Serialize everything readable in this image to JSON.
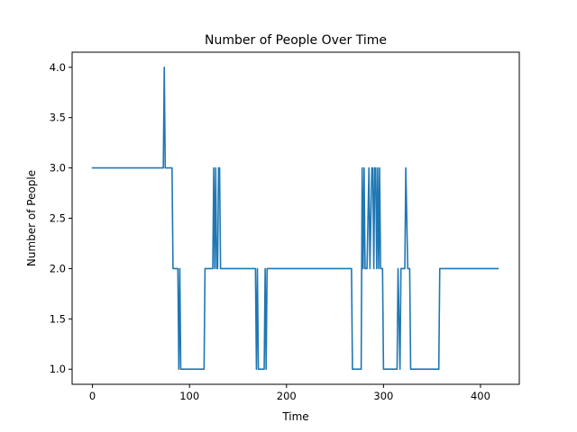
{
  "chart_data": {
    "type": "line",
    "title": "Number of People Over Time",
    "xlabel": "Time",
    "ylabel": "Number of People",
    "xlim": [
      -21,
      440
    ],
    "ylim": [
      0.85,
      4.15
    ],
    "xticks": [
      0,
      100,
      200,
      300,
      400
    ],
    "xtick_labels": [
      "0",
      "100",
      "200",
      "300",
      "400"
    ],
    "yticks": [
      1.0,
      1.5,
      2.0,
      2.5,
      3.0,
      3.5,
      4.0
    ],
    "ytick_labels": [
      "1.0",
      "1.5",
      "2.0",
      "2.5",
      "3.0",
      "3.5",
      "4.0"
    ],
    "grid": false,
    "legend": "none",
    "series": [
      {
        "color": "#1f77b4",
        "x": [
          0,
          73,
          74,
          75,
          77,
          78,
          80,
          81,
          82,
          83,
          88,
          89,
          90,
          91,
          92,
          115,
          116,
          124,
          125,
          126,
          127,
          128,
          129,
          130,
          131,
          132,
          168,
          169,
          170,
          171,
          172,
          173,
          177,
          178,
          179,
          180,
          181,
          267,
          268,
          277,
          278,
          279,
          280,
          281,
          282,
          283,
          285,
          286,
          288,
          289,
          290,
          291,
          292,
          293,
          294,
          295,
          296,
          297,
          298,
          299,
          300,
          301,
          313,
          314,
          315,
          317,
          318,
          320,
          322,
          323,
          325,
          327,
          328,
          357,
          358,
          418
        ],
        "values": [
          3,
          3,
          4,
          3,
          3,
          3,
          3,
          3,
          3,
          2,
          2,
          1,
          2,
          1,
          1,
          1,
          2,
          2,
          3,
          2,
          3,
          2,
          2,
          3,
          3,
          2,
          2,
          1,
          2,
          1,
          1,
          1,
          1,
          2,
          1,
          2,
          2,
          2,
          1,
          1,
          3,
          2,
          3,
          2,
          2,
          2,
          3,
          2,
          3,
          3,
          2,
          3,
          3,
          2,
          3,
          2,
          3,
          2,
          2,
          2,
          1,
          1,
          1,
          1,
          2,
          1,
          2,
          2,
          2,
          3,
          2,
          2,
          1,
          1,
          2,
          2
        ]
      }
    ]
  }
}
